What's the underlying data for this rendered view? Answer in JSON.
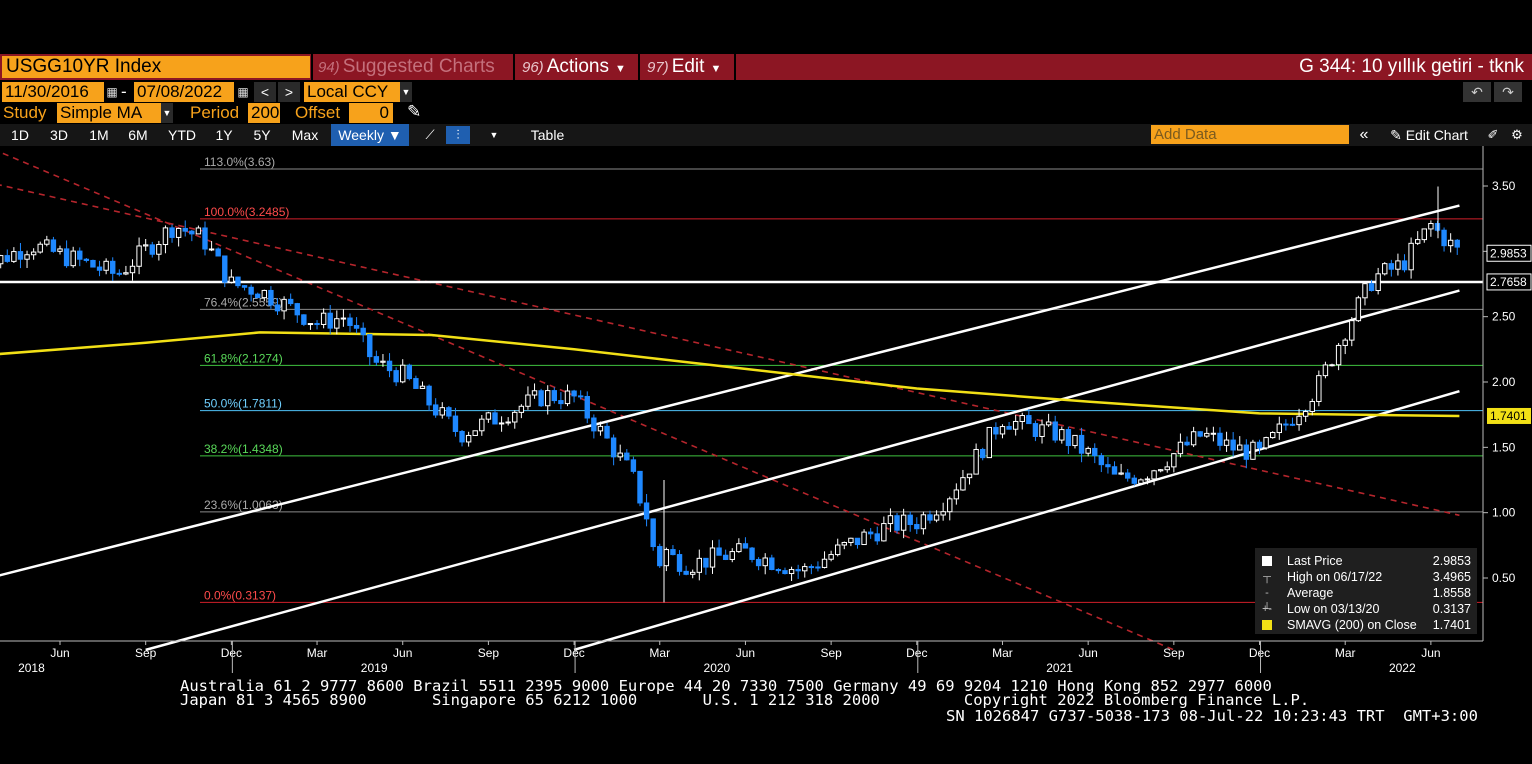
{
  "header": {
    "ticker": "USGG10YR Index",
    "suggested": {
      "num": "94)",
      "label": "Suggested Charts"
    },
    "actions": {
      "num": "96)",
      "label": "Actions"
    },
    "edit": {
      "num": "97)",
      "label": "Edit"
    },
    "title": "G 344: 10 yıllık getiri - tknk"
  },
  "range": {
    "start": "11/30/2016",
    "end": "07/08/2022",
    "dash": "-",
    "currency": "Local CCY"
  },
  "study": {
    "label": "Study",
    "value": "Simple MA",
    "period_label": "Period",
    "period": "200",
    "offset_label": "Offset",
    "offset": "0"
  },
  "toolbar": {
    "periods": [
      "1D",
      "3D",
      "1M",
      "6M",
      "YTD",
      "1Y",
      "5Y",
      "Max"
    ],
    "frequency": "Weekly",
    "table": "Table",
    "add_data_placeholder": "Add Data",
    "edit_chart": "Edit Chart"
  },
  "chart_data": {
    "type": "candlestick",
    "frequency": "Weekly",
    "y_range": [
      0.0,
      3.75
    ],
    "y_ticks": [
      "3.50",
      "3.00",
      "2.50",
      "2.00",
      "1.50",
      "1.00",
      "0.50"
    ],
    "x_month_labels": [
      "Jun",
      "Sep",
      "Dec",
      "Mar",
      "Jun",
      "Sep",
      "Dec",
      "Mar",
      "Jun",
      "Sep",
      "Dec",
      "Mar",
      "Jun",
      "Sep",
      "Dec",
      "Mar",
      "Jun"
    ],
    "x_year_labels": [
      "2018",
      "2019",
      "2020",
      "2021",
      "2022"
    ],
    "price_path": [
      [
        "2018-03",
        2.85
      ],
      [
        "2018-05",
        3.05
      ],
      [
        "2018-07",
        2.9
      ],
      [
        "2018-08",
        2.82
      ],
      [
        "2018-10",
        3.2
      ],
      [
        "2018-11",
        3.1
      ],
      [
        "2018-12",
        2.75
      ],
      [
        "2019-01",
        2.7
      ],
      [
        "2019-03",
        2.45
      ],
      [
        "2019-04",
        2.5
      ],
      [
        "2019-05",
        2.15
      ],
      [
        "2019-06",
        2.05
      ],
      [
        "2019-08",
        1.6
      ],
      [
        "2019-09",
        1.7
      ],
      [
        "2019-10",
        1.8
      ],
      [
        "2019-11",
        1.9
      ],
      [
        "2019-12",
        1.88
      ],
      [
        "2020-01",
        1.6
      ],
      [
        "2020-02",
        1.3
      ],
      [
        "2020-03",
        0.7
      ],
      [
        "2020-04",
        0.6
      ],
      [
        "2020-05",
        0.66
      ],
      [
        "2020-06",
        0.7
      ],
      [
        "2020-08",
        0.55
      ],
      [
        "2020-09",
        0.68
      ],
      [
        "2020-10",
        0.8
      ],
      [
        "2020-11",
        0.9
      ],
      [
        "2020-12",
        0.93
      ],
      [
        "2021-01",
        1.1
      ],
      [
        "2021-02",
        1.4
      ],
      [
        "2021-03",
        1.72
      ],
      [
        "2021-04",
        1.65
      ],
      [
        "2021-05",
        1.6
      ],
      [
        "2021-06",
        1.45
      ],
      [
        "2021-07",
        1.25
      ],
      [
        "2021-08",
        1.3
      ],
      [
        "2021-09",
        1.45
      ],
      [
        "2021-10",
        1.6
      ],
      [
        "2021-11",
        1.5
      ],
      [
        "2021-12",
        1.45
      ],
      [
        "2022-01",
        1.7
      ],
      [
        "2022-02",
        1.95
      ],
      [
        "2022-03",
        2.4
      ],
      [
        "2022-04",
        2.8
      ],
      [
        "2022-05",
        2.9
      ],
      [
        "2022-06",
        3.2
      ],
      [
        "2022-07",
        2.9853
      ]
    ],
    "sma200_path": [
      [
        "2018-03",
        2.2
      ],
      [
        "2018-09",
        2.3
      ],
      [
        "2019-01",
        2.38
      ],
      [
        "2019-07",
        2.36
      ],
      [
        "2019-12",
        2.25
      ],
      [
        "2020-06",
        2.1
      ],
      [
        "2020-12",
        1.95
      ],
      [
        "2021-06",
        1.85
      ],
      [
        "2021-12",
        1.76
      ],
      [
        "2022-07",
        1.7401
      ]
    ],
    "fibonacci": [
      {
        "label": "113.0%(3.63)",
        "value": 3.63
      },
      {
        "label": "100.0%(3.2485)",
        "value": 3.2485
      },
      {
        "label": "76.4%(2.5559)",
        "value": 2.5559
      },
      {
        "label": "61.8%(2.1274)",
        "value": 2.1274
      },
      {
        "label": "50.0%(1.7811)",
        "value": 1.7811
      },
      {
        "label": "38.2%(1.4348)",
        "value": 1.4348
      },
      {
        "label": "23.6%(1.0063)",
        "value": 1.0063
      },
      {
        "label": "0.0%(0.3137)",
        "value": 0.3137
      }
    ],
    "horizontal_line": 2.7658,
    "price_tags": [
      {
        "label": "2.9853",
        "value": 2.9853
      },
      {
        "label": "2.7658",
        "value": 2.7658
      },
      {
        "label": "1.7401",
        "value": 1.7401
      }
    ],
    "trend_channels": [
      {
        "from": [
          "2017-11",
          0.25
        ],
        "to": [
          "2022-07",
          3.35
        ]
      },
      {
        "from": [
          "2018-09",
          -0.05
        ],
        "to": [
          "2022-07",
          2.7
        ]
      },
      {
        "from": [
          "2019-12",
          -0.05
        ],
        "to": [
          "2022-07",
          1.93
        ]
      }
    ],
    "downtrend_lines": [
      {
        "from": [
          "2017-12",
          3.7
        ],
        "to": [
          "2022-07",
          0.98
        ]
      },
      {
        "from": [
          "2018-04",
          3.75
        ],
        "to": [
          "2021-09",
          -0.05
        ]
      }
    ],
    "colors": {
      "up": "#ffffff",
      "down": "#1e88ff",
      "sma": "#f2e016",
      "fib100": "#d11f2a",
      "fib_green": "#3fc23f",
      "fib50": "#4fc3f7",
      "downtrend": "#b5252c"
    },
    "legend": [
      {
        "label": "Last Price",
        "value": "2.9853"
      },
      {
        "label": "High on 06/17/22",
        "value": "3.4965"
      },
      {
        "label": "Average",
        "value": "1.8558"
      },
      {
        "label": "Low on 03/13/20",
        "value": "0.3137"
      },
      {
        "label": "SMAVG (200)  on Close",
        "value": "1.7401"
      }
    ]
  },
  "footer": {
    "line1": "Australia 61 2 9777 8600 Brazil 5511 2395 9000 Europe 44 20 7330 7500 Germany 49 69 9204 1210 Hong Kong 852 2977 6000",
    "line2": "Japan 81 3 4565 8900       Singapore 65 6212 1000       U.S. 1 212 318 2000         Copyright 2022 Bloomberg Finance L.P.",
    "line3": "SN 1026847 G737-5038-173 08-Jul-22 10:23:43 TRT  GMT+3:00"
  }
}
